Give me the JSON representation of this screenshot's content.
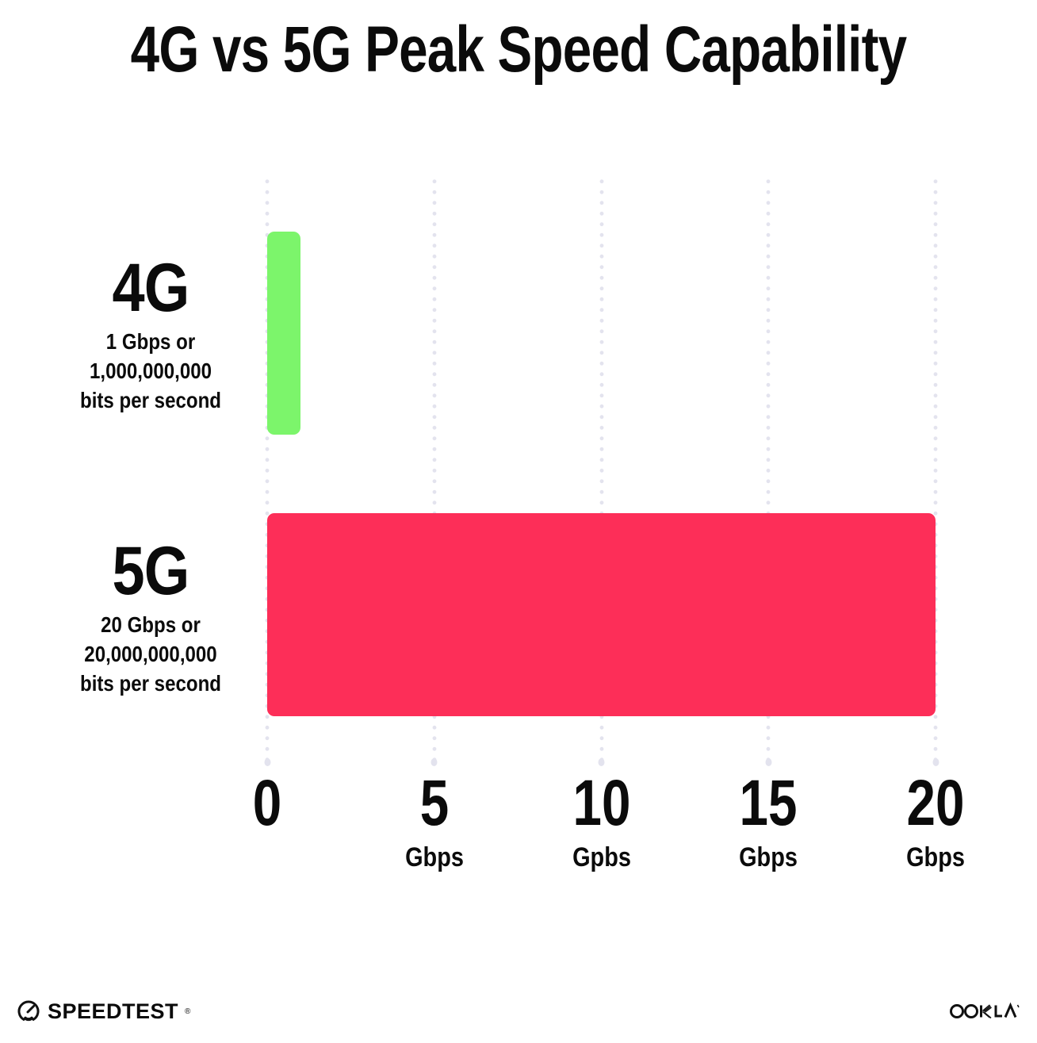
{
  "title": "4G vs 5G Peak Speed Capability",
  "chart_data": {
    "type": "bar",
    "orientation": "horizontal",
    "title": "4G vs 5G Peak Speed Capability",
    "categories": [
      "4G",
      "5G"
    ],
    "values": [
      1,
      20
    ],
    "value_unit": "Gbps",
    "bar_colors": [
      "#7CF56B",
      "#FD2E58"
    ],
    "row_labels": [
      {
        "heading": "4G",
        "sub_lines": [
          "1 Gbps or",
          "1,000,000,000",
          "bits per second"
        ]
      },
      {
        "heading": "5G",
        "sub_lines": [
          "20 Gbps or",
          "20,000,000,000",
          "bits per second"
        ]
      }
    ],
    "x_axis": {
      "min": 0,
      "max": 20,
      "ticks": [
        {
          "value": 0,
          "label": "0",
          "unit": ""
        },
        {
          "value": 5,
          "label": "5",
          "unit": "Gbps"
        },
        {
          "value": 10,
          "label": "10",
          "unit": "Gpbs"
        },
        {
          "value": 15,
          "label": "15",
          "unit": "Gbps"
        },
        {
          "value": 20,
          "label": "20",
          "unit": "Gbps"
        }
      ]
    },
    "grid": {
      "style": "vertical-dotted",
      "visible": true
    },
    "legend_position": "none"
  },
  "footer": {
    "speedtest_label": "SPEEDTEST",
    "speedtest_trademark": "®",
    "ookla_label": "OOKLA"
  },
  "colors": {
    "background": "#FFFFFF",
    "text": "#0B0B0B",
    "bar_4g": "#7CF56B",
    "bar_5g": "#FD2E58",
    "grid_dot": "#E3E3EE",
    "logo": "#111111"
  }
}
